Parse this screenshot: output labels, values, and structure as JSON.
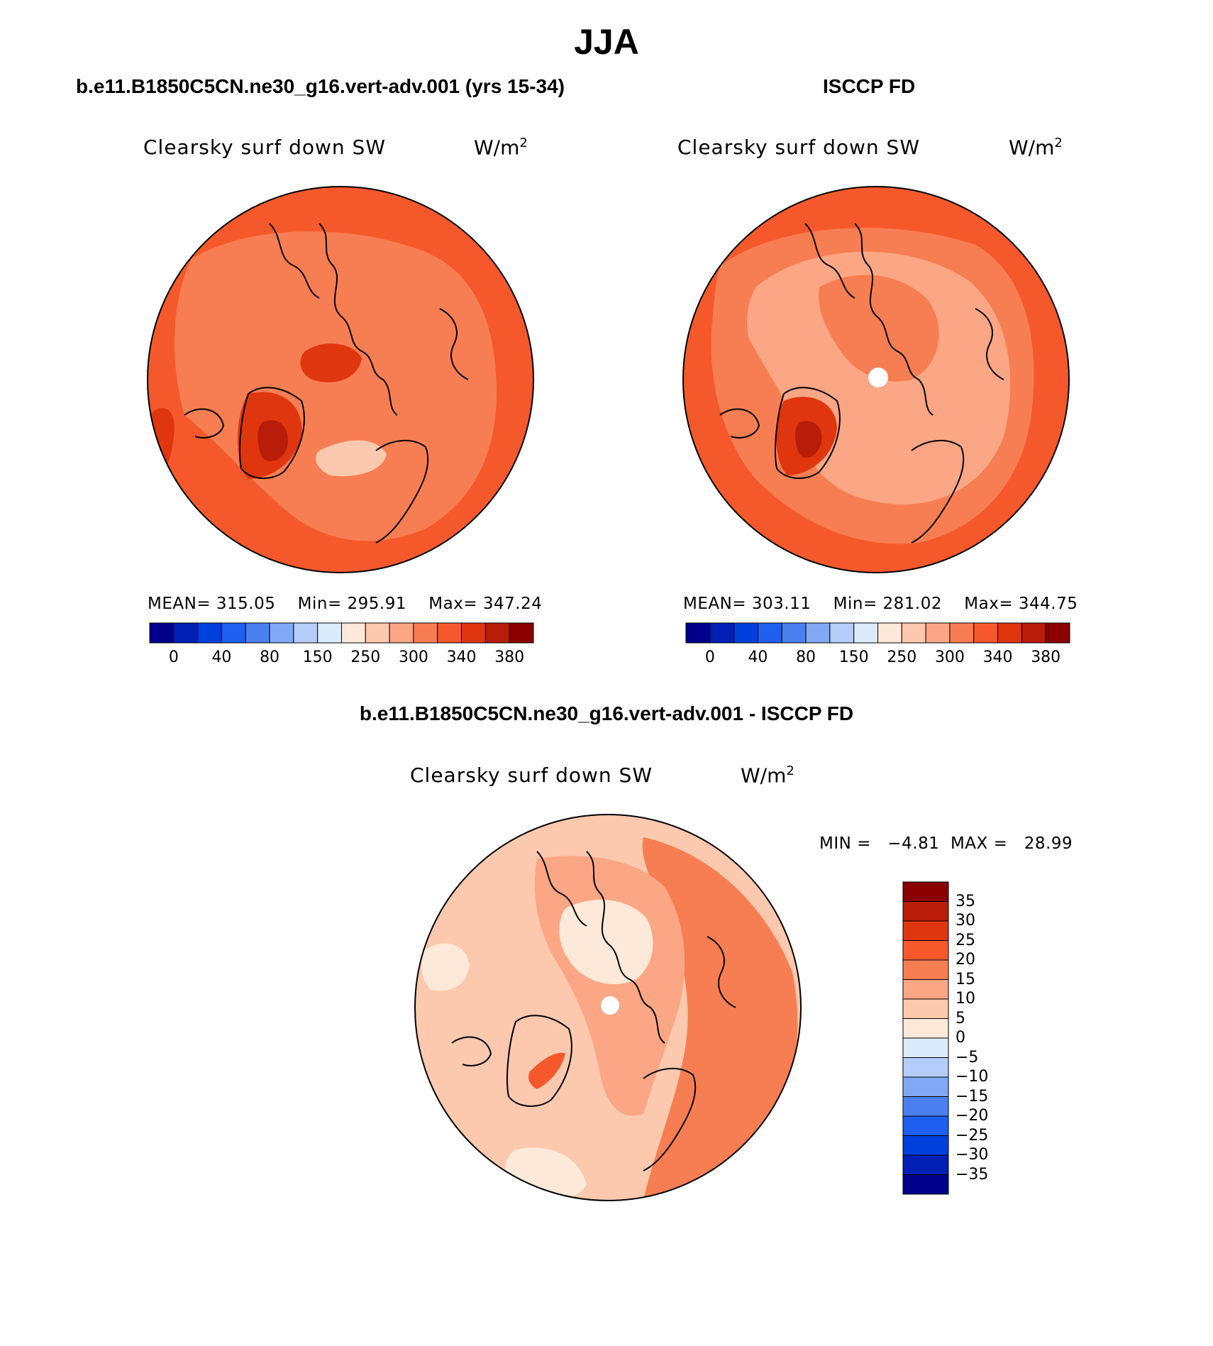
{
  "figure": {
    "title": "JJA",
    "panel_a_title": "b.e11.B1850C5CN.ne30_g16.vert-adv.001 (yrs 15-34)",
    "panel_b_title": "ISCCP FD",
    "panel_c_title": "b.e11.B1850C5CN.ne30_g16.vert-adv.001 - ISCCP FD"
  },
  "panels": {
    "a": {
      "variable": "Clearsky surf down SW",
      "units_base": "W/m",
      "units_exp": "2",
      "mean": "MEAN= 315.05",
      "min": "Min= 295.91",
      "max": "Max= 347.24"
    },
    "b": {
      "variable": "Clearsky surf down SW",
      "units_base": "W/m",
      "units_exp": "2",
      "mean": "MEAN= 303.11",
      "min": "Min= 281.02",
      "max": "Max= 344.75"
    },
    "c": {
      "variable": "Clearsky surf down SW",
      "units_base": "W/m",
      "units_exp": "2",
      "minmax": "MIN =   −4.81  MAX =   28.99"
    }
  },
  "colorbar_abs": {
    "colors": [
      "#00008b",
      "#0020b4",
      "#0040dc",
      "#2060f0",
      "#4a80f0",
      "#80a8f5",
      "#b4cdfa",
      "#dcebfc",
      "#fde9d9",
      "#fcc9ae",
      "#fba684",
      "#f77e52",
      "#f5592b",
      "#e0360f",
      "#b81d0a",
      "#8b0000"
    ],
    "labels": [
      "0",
      "40",
      "80",
      "150",
      "250",
      "300",
      "340",
      "380"
    ]
  },
  "colorbar_diff": {
    "colors": [
      "#8b0000",
      "#b81d0a",
      "#e0360f",
      "#f5592b",
      "#f77e52",
      "#fba684",
      "#fcc9ae",
      "#fde9d9",
      "#dcebfc",
      "#b4cdfa",
      "#80a8f5",
      "#4a80f0",
      "#2060f0",
      "#0040dc",
      "#0020b4",
      "#00008b"
    ],
    "labels": [
      "35",
      "30",
      "25",
      "20",
      "15",
      "10",
      "5",
      "0",
      "−5",
      "−10",
      "−15",
      "−20",
      "−25",
      "−30",
      "−35"
    ]
  },
  "map_colors": {
    "a": {
      "base": "#f5592b",
      "ring": "#f77e52",
      "dark": "#e0360f",
      "light": "#fcc9ae",
      "darkest": "#b81d0a"
    },
    "b": {
      "base": "#f5592b",
      "ring": "#f77e52",
      "light": "#fba684",
      "dark": "#e0360f",
      "darkest": "#b81d0a"
    },
    "c": {
      "base": "#fcc9ae",
      "mid": "#fba684",
      "warm": "#f77e52",
      "hot": "#f5592b",
      "pale": "#fde9d9"
    }
  }
}
